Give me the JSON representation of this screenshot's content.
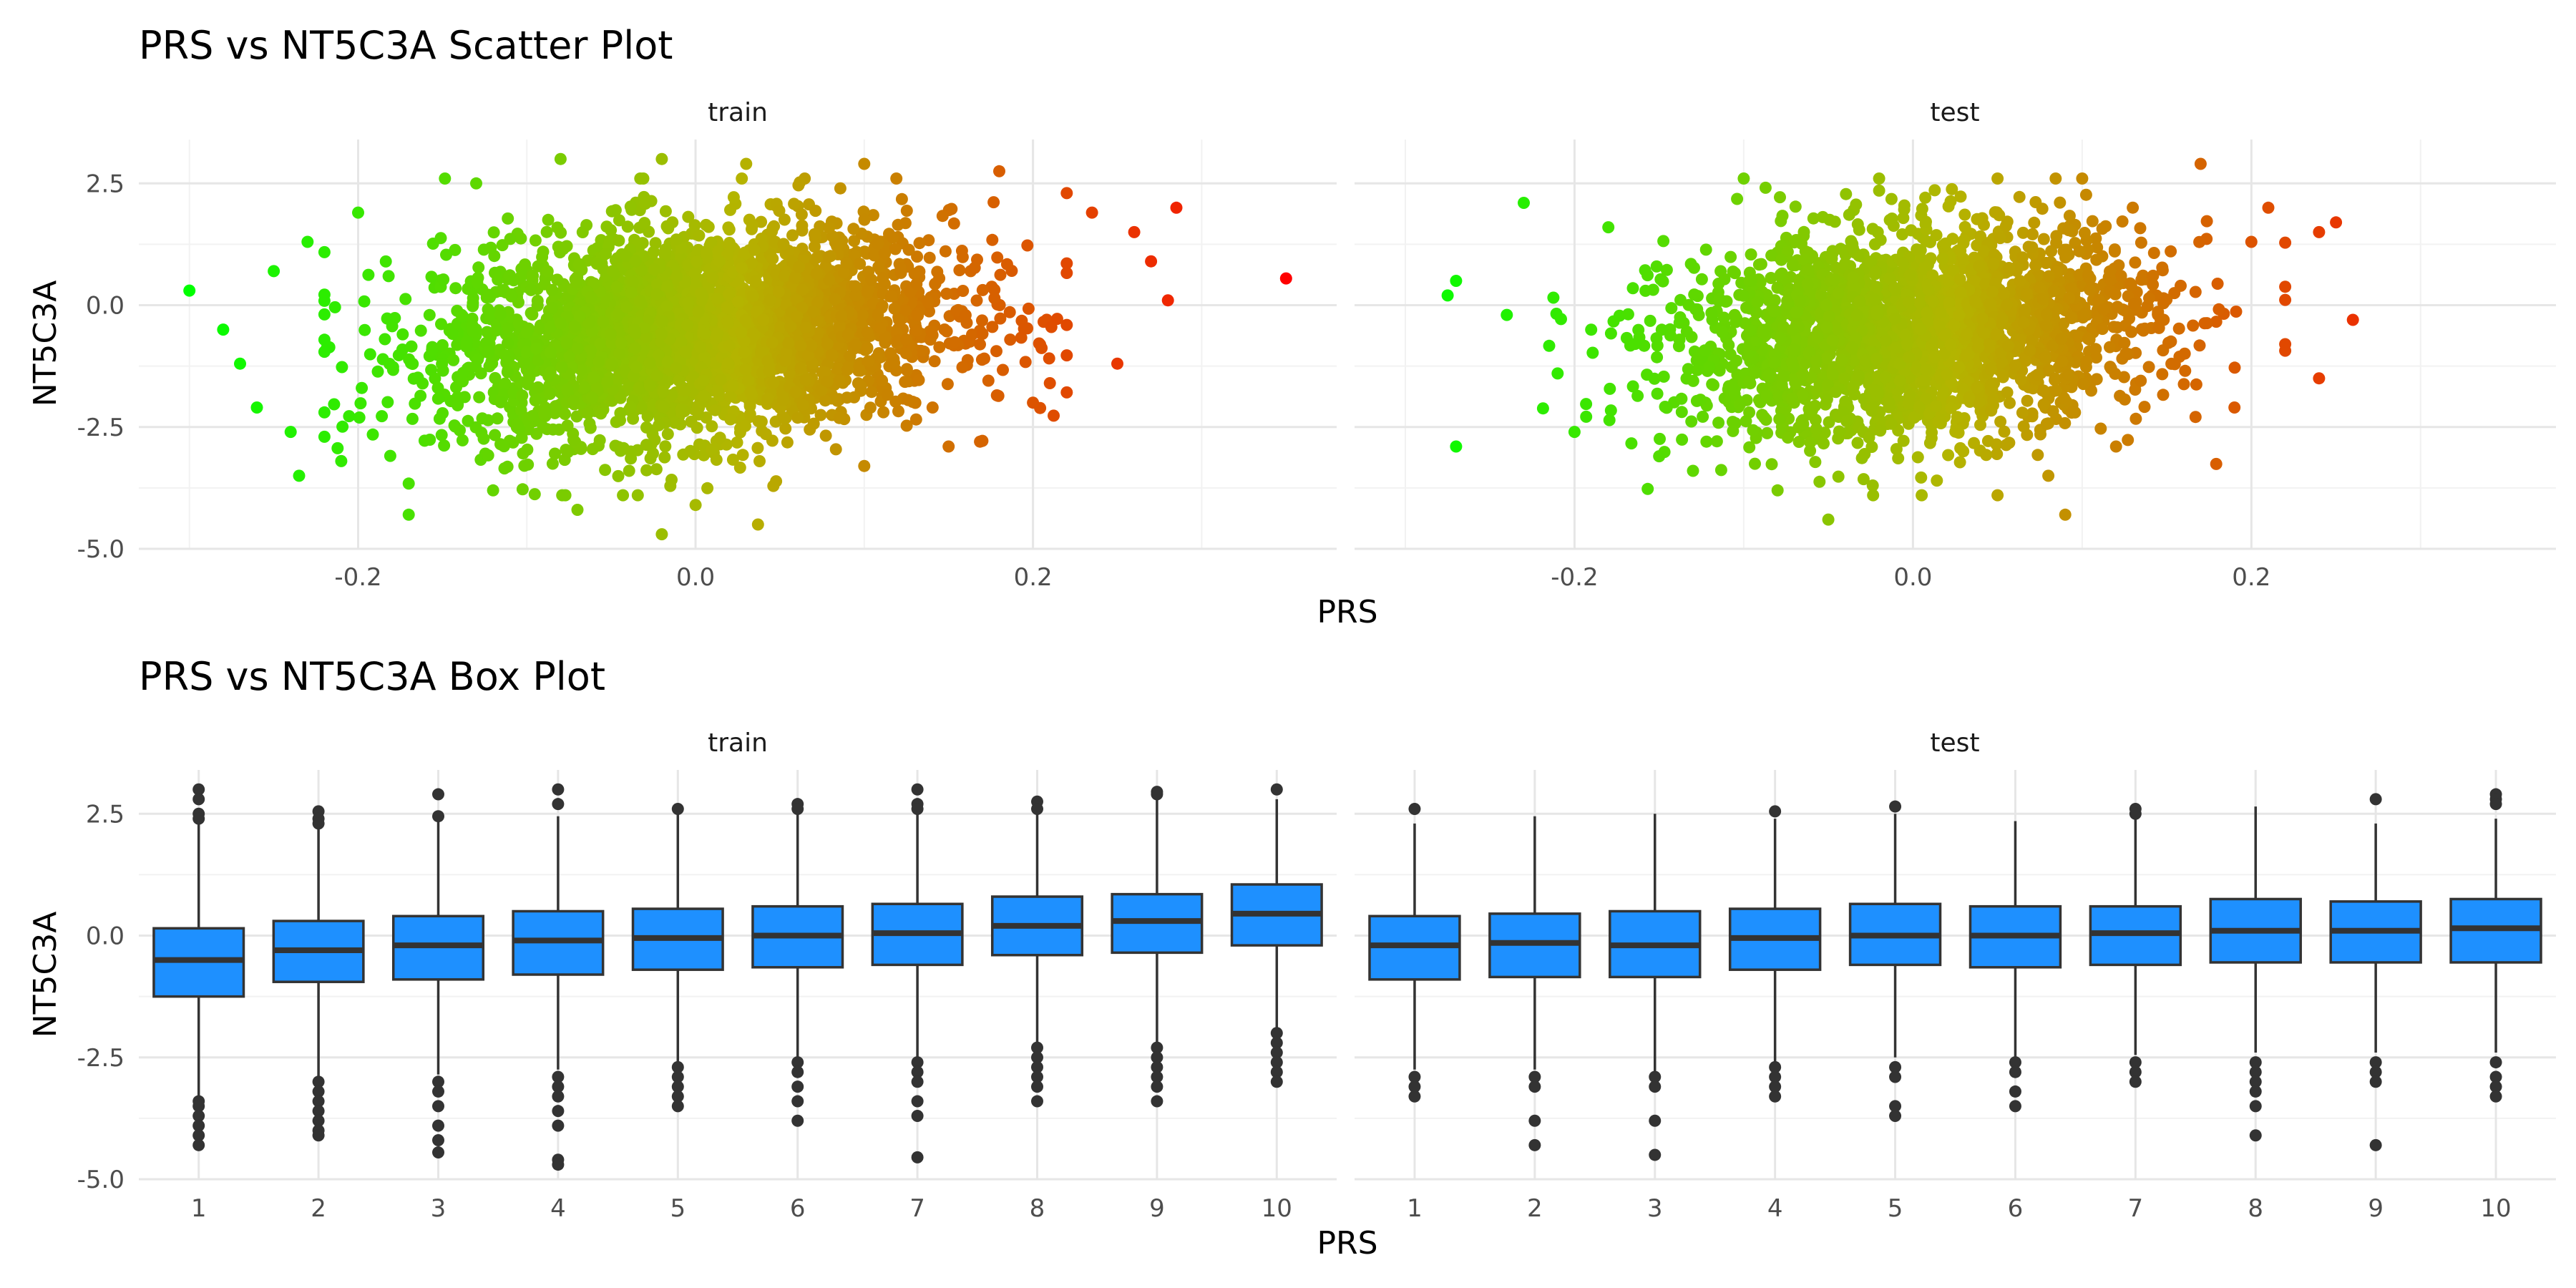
{
  "chart_data": [
    {
      "type": "scatter",
      "title": "PRS vs NT5C3A Scatter Plot",
      "xlabel": "PRS",
      "ylabel": "NT5C3A",
      "xlim": [
        -0.33,
        0.38
      ],
      "ylim": [
        -5.0,
        3.4
      ],
      "x_ticks": [
        -0.2,
        0.0,
        0.2
      ],
      "x_tick_labels": [
        "-0.2",
        "0.0",
        "0.2"
      ],
      "y_ticks": [
        -5.0,
        -2.5,
        0.0,
        2.5
      ],
      "y_tick_labels": [
        "-5.0",
        "-2.5",
        "0.0",
        "2.5"
      ],
      "grid": true,
      "color_scale": {
        "variable": "PRS",
        "low": "#00ff00",
        "mid": "#b4b400",
        "high": "#ff0000"
      },
      "facets": [
        {
          "label": "train",
          "points": [
            [
              -0.3,
              0.3
            ],
            [
              0.35,
              0.55
            ],
            [
              0.285,
              2.0
            ],
            [
              -0.27,
              -1.2
            ],
            [
              -0.235,
              -3.5
            ],
            [
              -0.26,
              -2.1
            ],
            [
              -0.2,
              1.9
            ],
            [
              -0.13,
              2.5
            ],
            [
              -0.08,
              3.0
            ],
            [
              -0.02,
              3.0
            ],
            [
              0.03,
              2.9
            ],
            [
              0.1,
              2.9
            ],
            [
              0.18,
              2.75
            ],
            [
              0.22,
              2.3
            ],
            [
              0.26,
              1.5
            ],
            [
              0.28,
              0.1
            ],
            [
              0.25,
              -1.2
            ],
            [
              0.2,
              -2.0
            ],
            [
              0.15,
              -2.9
            ],
            [
              0.1,
              -3.3
            ],
            [
              0.037,
              -4.5
            ],
            [
              -0.02,
              -4.7
            ],
            [
              -0.07,
              -4.2
            ],
            [
              -0.12,
              -3.8
            ],
            [
              -0.17,
              -4.3
            ],
            [
              -0.21,
              -3.2
            ],
            [
              -0.24,
              -2.6
            ],
            [
              -0.25,
              0.7
            ],
            [
              -0.23,
              1.3
            ],
            [
              0.235,
              1.9
            ],
            [
              0.21,
              -1.6
            ],
            [
              0.27,
              0.9
            ],
            [
              -0.28,
              -0.5
            ],
            [
              -0.22,
              -2.2
            ],
            [
              0.0,
              -4.1
            ]
          ]
        },
        {
          "label": "test",
          "points": [
            [
              -0.27,
              -2.9
            ],
            [
              -0.275,
              0.2
            ],
            [
              -0.23,
              2.1
            ],
            [
              -0.18,
              1.6
            ],
            [
              -0.1,
              2.6
            ],
            [
              -0.02,
              2.6
            ],
            [
              0.05,
              2.6
            ],
            [
              0.1,
              2.6
            ],
            [
              0.17,
              2.9
            ],
            [
              0.21,
              2.0
            ],
            [
              0.25,
              1.7
            ],
            [
              0.26,
              -0.3
            ],
            [
              0.24,
              -1.5
            ],
            [
              0.19,
              -2.1
            ],
            [
              0.12,
              -2.9
            ],
            [
              0.09,
              -4.3
            ],
            [
              0.05,
              -3.9
            ],
            [
              -0.05,
              -4.4
            ],
            [
              -0.08,
              -3.8
            ],
            [
              -0.15,
              -3.1
            ],
            [
              -0.2,
              -2.6
            ],
            [
              -0.24,
              -0.2
            ],
            [
              0.2,
              1.3
            ],
            [
              0.24,
              1.5
            ],
            [
              -0.21,
              -1.4
            ],
            [
              0.22,
              -0.8
            ],
            [
              -0.27,
              0.5
            ],
            [
              0.08,
              -3.5
            ],
            [
              -0.13,
              -3.4
            ]
          ]
        }
      ]
    },
    {
      "type": "box",
      "title": "PRS vs NT5C3A Box Plot",
      "xlabel": "PRS",
      "ylabel": "NT5C3A",
      "categories": [
        "1",
        "2",
        "3",
        "4",
        "5",
        "6",
        "7",
        "8",
        "9",
        "10"
      ],
      "ylim": [
        -5.0,
        3.4
      ],
      "y_ticks": [
        -5.0,
        -2.5,
        0.0,
        2.5
      ],
      "y_tick_labels": [
        "-5.0",
        "-2.5",
        "0.0",
        "2.5"
      ],
      "grid": true,
      "fill": "#1e90ff",
      "outline": "#333333",
      "facets": [
        {
          "label": "train",
          "boxes": [
            {
              "q1": -1.25,
              "median": -0.5,
              "q3": 0.15,
              "lower": -3.3,
              "upper": 2.35,
              "outliers": [
                3.0,
                2.8,
                2.5,
                2.4,
                -3.4,
                -3.5,
                -3.7,
                -3.9,
                -4.1,
                -4.3
              ]
            },
            {
              "q1": -0.95,
              "median": -0.3,
              "q3": 0.3,
              "lower": -2.9,
              "upper": 2.2,
              "outliers": [
                2.55,
                2.4,
                2.3,
                -3.0,
                -3.2,
                -3.4,
                -3.6,
                -3.8,
                -4.0,
                -4.1
              ]
            },
            {
              "q1": -0.9,
              "median": -0.2,
              "q3": 0.4,
              "lower": -2.85,
              "upper": 2.4,
              "outliers": [
                2.9,
                2.45,
                -3.0,
                -3.2,
                -3.5,
                -3.9,
                -4.2,
                -4.45
              ]
            },
            {
              "q1": -0.8,
              "median": -0.1,
              "q3": 0.5,
              "lower": -2.75,
              "upper": 2.45,
              "outliers": [
                3.0,
                2.7,
                -2.9,
                -3.1,
                -3.3,
                -3.6,
                -3.9,
                -4.6,
                -4.7
              ]
            },
            {
              "q1": -0.7,
              "median": -0.05,
              "q3": 0.55,
              "lower": -2.6,
              "upper": 2.5,
              "outliers": [
                2.6,
                -2.7,
                -2.9,
                -3.1,
                -3.3,
                -3.5
              ]
            },
            {
              "q1": -0.65,
              "median": 0.0,
              "q3": 0.6,
              "lower": -2.5,
              "upper": 2.55,
              "outliers": [
                2.7,
                2.6,
                -2.6,
                -2.8,
                -3.1,
                -3.4,
                -3.8
              ]
            },
            {
              "q1": -0.6,
              "median": 0.05,
              "q3": 0.65,
              "lower": -2.5,
              "upper": 2.6,
              "outliers": [
                3.0,
                2.7,
                2.6,
                -2.6,
                -2.8,
                -3.0,
                -3.4,
                -3.7,
                -4.55
              ]
            },
            {
              "q1": -0.4,
              "median": 0.2,
              "q3": 0.8,
              "lower": -2.2,
              "upper": 2.6,
              "outliers": [
                2.75,
                2.6,
                -2.3,
                -2.5,
                -2.7,
                -2.9,
                -3.1,
                -3.4
              ]
            },
            {
              "q1": -0.35,
              "median": 0.3,
              "q3": 0.85,
              "lower": -2.2,
              "upper": 2.85,
              "outliers": [
                2.95,
                2.9,
                -2.3,
                -2.5,
                -2.7,
                -2.9,
                -3.1,
                -3.4
              ]
            },
            {
              "q1": -0.2,
              "median": 0.45,
              "q3": 1.05,
              "lower": -1.95,
              "upper": 2.8,
              "outliers": [
                3.0,
                -2.0,
                -2.2,
                -2.4,
                -2.6,
                -2.8,
                -3.0
              ]
            }
          ]
        },
        {
          "label": "test",
          "boxes": [
            {
              "q1": -0.9,
              "median": -0.2,
              "q3": 0.4,
              "lower": -2.75,
              "upper": 2.3,
              "outliers": [
                2.6,
                -2.9,
                -3.1,
                -3.3
              ]
            },
            {
              "q1": -0.85,
              "median": -0.15,
              "q3": 0.45,
              "lower": -2.75,
              "upper": 2.45,
              "outliers": [
                -2.9,
                -3.1,
                -3.8,
                -4.3
              ]
            },
            {
              "q1": -0.85,
              "median": -0.2,
              "q3": 0.5,
              "lower": -2.8,
              "upper": 2.5,
              "outliers": [
                -2.9,
                -3.1,
                -3.8,
                -4.5
              ]
            },
            {
              "q1": -0.7,
              "median": -0.05,
              "q3": 0.55,
              "lower": -2.6,
              "upper": 2.4,
              "outliers": [
                2.55,
                -2.7,
                -2.9,
                -3.1,
                -3.3
              ]
            },
            {
              "q1": -0.6,
              "median": 0.0,
              "q3": 0.65,
              "lower": -2.5,
              "upper": 2.5,
              "outliers": [
                2.65,
                -2.7,
                -2.9,
                -3.5,
                -3.7
              ]
            },
            {
              "q1": -0.65,
              "median": 0.0,
              "q3": 0.6,
              "lower": -2.5,
              "upper": 2.35,
              "outliers": [
                -2.6,
                -2.8,
                -3.2,
                -3.5
              ]
            },
            {
              "q1": -0.6,
              "median": 0.05,
              "q3": 0.6,
              "lower": -2.45,
              "upper": 2.45,
              "outliers": [
                2.6,
                2.5,
                -2.6,
                -2.8,
                -3.0
              ]
            },
            {
              "q1": -0.55,
              "median": 0.1,
              "q3": 0.75,
              "lower": -2.4,
              "upper": 2.65,
              "outliers": [
                -2.6,
                -2.8,
                -3.0,
                -3.2,
                -3.5,
                -4.1
              ]
            },
            {
              "q1": -0.55,
              "median": 0.1,
              "q3": 0.7,
              "lower": -2.4,
              "upper": 2.3,
              "outliers": [
                2.8,
                -2.6,
                -2.8,
                -3.0,
                -4.3
              ]
            },
            {
              "q1": -0.55,
              "median": 0.15,
              "q3": 0.75,
              "lower": -2.4,
              "upper": 2.4,
              "outliers": [
                2.9,
                2.8,
                2.7,
                -2.6,
                -2.9,
                -3.1,
                -3.3
              ]
            }
          ]
        }
      ]
    }
  ]
}
